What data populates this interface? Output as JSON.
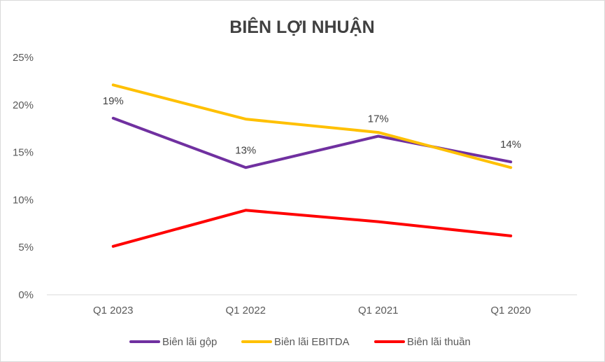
{
  "chart_data": {
    "type": "line",
    "title": "BIÊN LỢI NHUẬN",
    "xlabel": "",
    "ylabel": "",
    "categories": [
      "Q1 2023",
      "Q1 2022",
      "Q1 2021",
      "Q1 2020"
    ],
    "ylim": [
      0,
      25
    ],
    "yticks": [
      "0%",
      "5%",
      "10%",
      "15%",
      "20%",
      "25%"
    ],
    "ytick_values": [
      0,
      5,
      10,
      15,
      20,
      25
    ],
    "grid": false,
    "legend_position": "bottom",
    "series": [
      {
        "name": "Biên lãi gộp",
        "color": "#7030a0",
        "values": [
          18.6,
          13.4,
          16.7,
          14.0
        ],
        "data_labels": [
          "19%",
          "13%",
          "17%",
          "14%"
        ]
      },
      {
        "name": "Biên lãi EBITDA",
        "color": "#ffc000",
        "values": [
          22.1,
          18.5,
          17.1,
          13.4
        ]
      },
      {
        "name": "Biên lãi thuần",
        "color": "#ff0000",
        "values": [
          5.1,
          8.9,
          7.7,
          6.2
        ]
      }
    ]
  }
}
